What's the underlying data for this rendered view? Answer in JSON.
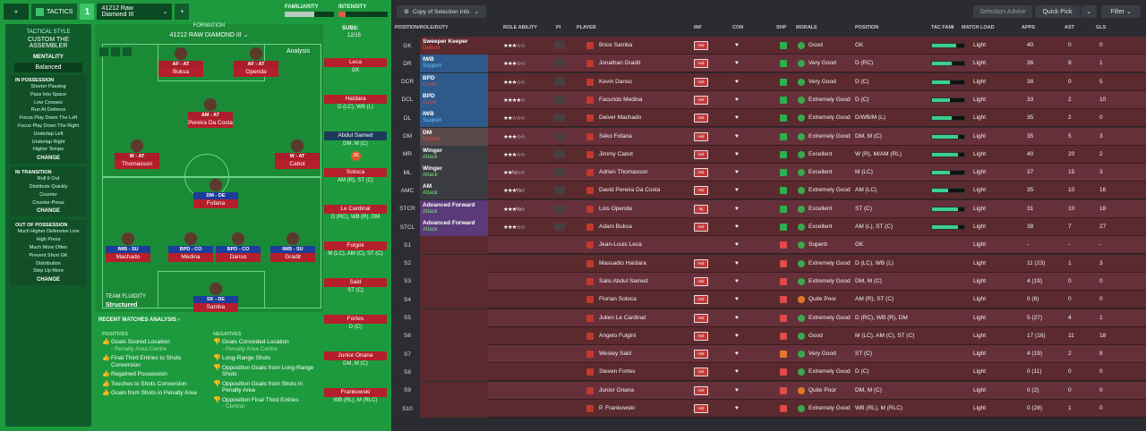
{
  "topbar": {
    "back_icon": "double-chevron-left-icon",
    "tactics_label": "TACTICS",
    "tactic_number": "1",
    "formation_select": "41212 Raw Diamond III",
    "add_label": "+",
    "familiarity_label": "FAMILIARITY",
    "intensity_label": "INTENSITY",
    "familiarity_fill": 0.6,
    "intensity_fill": 0.15
  },
  "tactic_panel": {
    "style_label": "TACTICAL STYLE",
    "style_value": "CUSTOM THE ASSEMBLER",
    "mentality_label": "MENTALITY",
    "mentality_value": "Balanced",
    "in_possession": {
      "title": "IN POSSESSION",
      "items": [
        "Shorter Passing",
        "Pass Into Space",
        "Low Crosses",
        "Run At Defence",
        "Focus Play Down The Left",
        "Focus Play Down The Right",
        "Underlap Left",
        "Underlap Right",
        "Higher Tempo"
      ],
      "change": "CHANGE"
    },
    "in_transition": {
      "title": "IN TRANSITION",
      "items": [
        "Roll It Out",
        "Distribute Quickly",
        "Counter",
        "Counter-Press"
      ],
      "change": "CHANGE"
    },
    "out_of_possession": {
      "title": "OUT OF POSSESSION",
      "items": [
        "Much Higher Defensive Line",
        "High Press",
        "Much More Often",
        "Prevent Short GK",
        "Distribution",
        "Step Up More"
      ],
      "change": "CHANGE"
    }
  },
  "formation": {
    "label": "FORMATION",
    "name": "41212 RAW DIAMOND III",
    "analysis_label": "Analysis",
    "team_fluidity_label": "TEAM FLUIDITY",
    "team_fluidity_value": "Structured",
    "players": [
      {
        "role": "AF - AT",
        "name": "Buksa",
        "attack": true
      },
      {
        "role": "AF - AT",
        "name": "Openda",
        "attack": true
      },
      {
        "role": "AM - AT",
        "name": "Pereira Da Costa",
        "attack": true
      },
      {
        "role": "W - AT",
        "name": "Thomasson",
        "attack": true
      },
      {
        "role": "W - AT",
        "name": "Cabot",
        "attack": true
      },
      {
        "role": "DM - DE",
        "name": "Fofana",
        "attack": false
      },
      {
        "role": "IWB - SU",
        "name": "Machado",
        "attack": false
      },
      {
        "role": "BPD - CO",
        "name": "Medina",
        "attack": false
      },
      {
        "role": "BPD - CO",
        "name": "Danso",
        "attack": false
      },
      {
        "role": "IWB - SU",
        "name": "Gradit",
        "attack": false
      },
      {
        "role": "SK - DE",
        "name": "Samba",
        "attack": false
      }
    ]
  },
  "subs": {
    "label": "SUBS:",
    "count": "12/15",
    "list": [
      {
        "name": "Leca",
        "pos": "GK",
        "dark": false
      },
      {
        "name": "Haïdara",
        "pos": "D (LC), WB (L)",
        "dark": false
      },
      {
        "name": "Abdul Samed",
        "pos": "DM, M (C)",
        "dark": true
      },
      {
        "name": "Sotoca",
        "pos": "AM (R), ST (C)",
        "dark": false
      },
      {
        "name": "Le Cardinal",
        "pos": "D (RC), WB (R), DM",
        "dark": false
      },
      {
        "name": "Fulgini",
        "pos": "M (LC), AM (C), ST (C)",
        "dark": false
      },
      {
        "name": "Said",
        "pos": "ST (C)",
        "dark": false
      },
      {
        "name": "Fortes",
        "pos": "D (C)",
        "dark": false
      },
      {
        "name": "Junior Onana",
        "pos": "DM, M (C)",
        "dark": false
      },
      {
        "name": "Frankowski",
        "pos": "WB (RL), M (RLC)",
        "dark": false
      }
    ],
    "badge": "26"
  },
  "analysis": {
    "title": "RECENT MATCHES ANALYSIS",
    "positives_label": "POSITIVES",
    "negatives_label": "NEGATIVES",
    "positives": [
      {
        "text": "Goals Scored Location",
        "sub": "- Penalty Area Centre"
      },
      {
        "text": "Final Third Entries to Shots Conversion",
        "sub": ""
      },
      {
        "text": "Regained Possession",
        "sub": ""
      },
      {
        "text": "Touches to Shots Conversion",
        "sub": ""
      },
      {
        "text": "Goals from Shots in Penalty Area",
        "sub": ""
      }
    ],
    "negatives": [
      {
        "text": "Goals Conceded Location",
        "sub": "- Penalty Area Centre"
      },
      {
        "text": "Long-Range Shots",
        "sub": ""
      },
      {
        "text": "Opposition Goals from Long-Range Shots",
        "sub": ""
      },
      {
        "text": "Opposition Goals from Shots in Penalty Area",
        "sub": ""
      },
      {
        "text": "Opposition Final Third Entries",
        "sub": "- Central"
      }
    ]
  },
  "right_top": {
    "copy_label": "Copy of Selection Info",
    "selection_advice": "Selection Advice",
    "quick_pick": "Quick Pick",
    "filter": "Filter"
  },
  "table": {
    "headers": {
      "pos": "POSITION/ROLE/DUTY",
      "ability": "ROLE ABILITY",
      "pi": "PI",
      "player": "PLAYER",
      "inf": "INF",
      "con": "CON",
      "shp": "SHP",
      "morale": "MORALE",
      "position": "POSITION",
      "tac": "TAC FAMI",
      "match": "MATCH LOAD",
      "apps": "APPS",
      "ast": "AST",
      "gls": "GLS"
    },
    "rows": [
      {
        "slot": "GK",
        "role": "Sweeper Keeper",
        "duty": "Defend",
        "duty_color": "#e04a4a",
        "duty_bg": "#5a2a2e",
        "stars": "★★★☆☆",
        "player": "Brice Samba",
        "inf": "Hol",
        "morale": "Good",
        "position": "GK",
        "tac": 0.75,
        "load": "Light",
        "apps": "40",
        "ast": "0",
        "gls": "0",
        "shp": "#2bb04e",
        "mo": "#3aa84e"
      },
      {
        "slot": "DR",
        "role": "IWB",
        "duty": "Support",
        "duty_color": "#6ec1ff",
        "duty_bg": "#2d5a8a",
        "stars": "★★★☆☆",
        "player": "Jonathan Gradit",
        "inf": "Hol",
        "morale": "Very Good",
        "position": "D (RC)",
        "tac": 0.6,
        "load": "Light",
        "apps": "36",
        "ast": "9",
        "gls": "1",
        "shp": "#2bb04e",
        "mo": "#3aa84e"
      },
      {
        "slot": "DCR",
        "role": "BPD",
        "duty": "Cover",
        "duty_color": "#e04a4a",
        "duty_bg": "#2d5a8a",
        "stars": "★★★☆☆",
        "player": "Kevin Danso",
        "inf": "Hol",
        "morale": "Very Good",
        "position": "D (C)",
        "tac": 0.55,
        "load": "Light",
        "apps": "38",
        "ast": "0",
        "gls": "5",
        "shp": "#2bb04e",
        "mo": "#3aa84e"
      },
      {
        "slot": "DCL",
        "role": "BPD",
        "duty": "Cover",
        "duty_color": "#e04a4a",
        "duty_bg": "#2d5a8a",
        "stars": "★★★★☆",
        "player": "Facundo Medina",
        "inf": "Hol",
        "morale": "Extremely Good",
        "position": "D (C)",
        "tac": 0.55,
        "load": "Light",
        "apps": "33",
        "ast": "2",
        "gls": "10",
        "shp": "#2bb04e",
        "mo": "#3aa84e"
      },
      {
        "slot": "DL",
        "role": "IWB",
        "duty": "Support",
        "duty_color": "#6ec1ff",
        "duty_bg": "#2d5a8a",
        "stars": "★★☆☆☆",
        "player": "Deiver Machado",
        "inf": "Hol",
        "morale": "Extremely Good",
        "position": "D/WB/M (L)",
        "tac": 0.6,
        "load": "Light",
        "apps": "35",
        "ast": "2",
        "gls": "0",
        "shp": "#2bb04e",
        "mo": "#3aa84e"
      },
      {
        "slot": "DM",
        "role": "DM",
        "duty": "Defend",
        "duty_color": "#e04a4a",
        "duty_bg": "#5a4a4a",
        "stars": "★★★☆☆",
        "player": "Séko Fofana",
        "inf": "Hol",
        "morale": "Extremely Good",
        "position": "DM, M (C)",
        "tac": 0.8,
        "load": "Light",
        "apps": "35",
        "ast": "5",
        "gls": "3",
        "shp": "#2bb04e",
        "mo": "#3aa84e"
      },
      {
        "slot": "MR",
        "role": "Winger",
        "duty": "Attack",
        "duty_color": "#7ae07a",
        "duty_bg": "#3a3c42",
        "stars": "★★★☆☆",
        "player": "Jimmy Cabot",
        "inf": "Hol",
        "morale": "Excellent",
        "position": "W (R), M/AM (RL)",
        "tac": 0.8,
        "load": "Light",
        "apps": "40",
        "ast": "20",
        "gls": "2",
        "shp": "#2bb04e",
        "mo": "#3aa84e"
      },
      {
        "slot": "ML",
        "role": "Winger",
        "duty": "Attack",
        "duty_color": "#7ae07a",
        "duty_bg": "#3a3c42",
        "stars": "★★½☆☆",
        "player": "Adrien Thomasson",
        "inf": "Hol",
        "morale": "Excellent",
        "position": "M (LC)",
        "tac": 0.55,
        "load": "Light",
        "apps": "37",
        "ast": "15",
        "gls": "3",
        "shp": "#2bb04e",
        "mo": "#3aa84e"
      },
      {
        "slot": "AMC",
        "role": "AM",
        "duty": "Attack",
        "duty_color": "#7ae07a",
        "duty_bg": "#3a3c42",
        "stars": "★★★½☆",
        "player": "David Pereira Da Costa",
        "inf": "Hol",
        "morale": "Extremely Good",
        "position": "AM (LC)",
        "tac": 0.5,
        "load": "Light",
        "apps": "35",
        "ast": "10",
        "gls": "16",
        "shp": "#2bb04e",
        "mo": "#3aa84e"
      },
      {
        "slot": "STCR",
        "role": "Advanced Forward",
        "duty": "Attack",
        "duty_color": "#7ae07a",
        "duty_bg": "#5a3a78",
        "stars": "★★★½☆",
        "player": "Lois Openda",
        "inf": "Inj",
        "morale": "Excellent",
        "position": "ST (C)",
        "tac": 0.8,
        "load": "Light",
        "apps": "31",
        "ast": "10",
        "gls": "18",
        "shp": "#2bb04e",
        "mo": "#3aa84e"
      },
      {
        "slot": "STCL",
        "role": "Advanced Forward",
        "duty": "Attack",
        "duty_color": "#7ae07a",
        "duty_bg": "#5a3a78",
        "stars": "★★★☆☆",
        "player": "Adam Buksa",
        "inf": "Hol",
        "morale": "Excellent",
        "position": "AM (L), ST (C)",
        "tac": 0.8,
        "load": "Light",
        "apps": "38",
        "ast": "7",
        "gls": "27",
        "shp": "#2bb04e",
        "mo": "#3aa84e"
      },
      {
        "slot": "S1",
        "role": "",
        "duty": "",
        "duty_color": "#fff",
        "duty_bg": "#5a2a2e",
        "stars": "",
        "player": "Jean-Louis Leca",
        "inf": "",
        "morale": "Superb",
        "position": "GK",
        "tac": 0,
        "load": "Light",
        "apps": "-",
        "ast": "-",
        "gls": "-",
        "shp": "#e04a4a",
        "mo": "#3aa84e"
      },
      {
        "slot": "S2",
        "role": "",
        "duty": "",
        "duty_color": "#fff",
        "duty_bg": "#5a2a2e",
        "stars": "",
        "player": "Massadio Haïdara",
        "inf": "Hol",
        "morale": "Extremely Good",
        "position": "D (LC), WB (L)",
        "tac": 0,
        "load": "Light",
        "apps": "11 (23)",
        "ast": "1",
        "gls": "3",
        "shp": "#e04a4a",
        "mo": "#3aa84e"
      },
      {
        "slot": "S3",
        "role": "",
        "duty": "",
        "duty_color": "#fff",
        "duty_bg": "#5a2a2e",
        "stars": "",
        "player": "Salis Abdul Samed",
        "inf": "Hol",
        "morale": "Extremely Good",
        "position": "DM, M (C)",
        "tac": 0,
        "load": "Light",
        "apps": "4 (19)",
        "ast": "0",
        "gls": "0",
        "shp": "#e04a4a",
        "mo": "#3aa84e"
      },
      {
        "slot": "S4",
        "role": "",
        "duty": "",
        "duty_color": "#fff",
        "duty_bg": "#5a2a2e",
        "stars": "",
        "player": "Florian Sotoca",
        "inf": "Hol",
        "morale": "Quite Poor",
        "position": "AM (R), ST (C)",
        "tac": 0,
        "load": "Light",
        "apps": "0 (6)",
        "ast": "0",
        "gls": "0",
        "shp": "#e04a4a",
        "mo": "#e0782a"
      },
      {
        "slot": "S5",
        "role": "",
        "duty": "",
        "duty_color": "#fff",
        "duty_bg": "#5a2a2e",
        "stars": "",
        "player": "Julien Le Cardinal",
        "inf": "Hol",
        "morale": "Extremely Good",
        "position": "D (RC), WB (R), DM",
        "tac": 0,
        "load": "Light",
        "apps": "5 (27)",
        "ast": "4",
        "gls": "1",
        "shp": "#e04a4a",
        "mo": "#3aa84e"
      },
      {
        "slot": "S6",
        "role": "",
        "duty": "",
        "duty_color": "#fff",
        "duty_bg": "#5a2a2e",
        "stars": "",
        "player": "Angelo Fulgini",
        "inf": "Hol",
        "morale": "Good",
        "position": "M (LC), AM (C), ST (C)",
        "tac": 0,
        "load": "Light",
        "apps": "17 (16)",
        "ast": "11",
        "gls": "18",
        "shp": "#e04a4a",
        "mo": "#3aa84e"
      },
      {
        "slot": "S7",
        "role": "",
        "duty": "",
        "duty_color": "#fff",
        "duty_bg": "#5a2a2e",
        "stars": "",
        "player": "Wesley Said",
        "inf": "Hol",
        "morale": "Very Good",
        "position": "ST (C)",
        "tac": 0,
        "load": "Light",
        "apps": "4 (19)",
        "ast": "2",
        "gls": "8",
        "shp": "#e0782a",
        "mo": "#3aa84e"
      },
      {
        "slot": "S8",
        "role": "",
        "duty": "",
        "duty_color": "#fff",
        "duty_bg": "#5a2a2e",
        "stars": "",
        "player": "Steven Fortes",
        "inf": "Hol",
        "morale": "Extremely Good",
        "position": "D (C)",
        "tac": 0,
        "load": "Light",
        "apps": "0 (11)",
        "ast": "0",
        "gls": "0",
        "shp": "#e04a4a",
        "mo": "#3aa84e"
      },
      {
        "slot": "S9",
        "role": "",
        "duty": "",
        "duty_color": "#fff",
        "duty_bg": "#5a2a2e",
        "stars": "",
        "player": "Junior Onana",
        "inf": "Hol",
        "morale": "Quite Poor",
        "position": "DM, M (C)",
        "tac": 0,
        "load": "Light",
        "apps": "0 (2)",
        "ast": "0",
        "gls": "0",
        "shp": "#e04a4a",
        "mo": "#e0782a"
      },
      {
        "slot": "S10",
        "role": "",
        "duty": "",
        "duty_color": "#fff",
        "duty_bg": "#5a2a2e",
        "stars": "",
        "player": "P. Frankowski",
        "inf": "Hol",
        "morale": "Extremely Good",
        "position": "WB (RL), M (RLC)",
        "tac": 0,
        "load": "Light",
        "apps": "0 (28)",
        "ast": "1",
        "gls": "0",
        "shp": "#e04a4a",
        "mo": "#3aa84e"
      }
    ]
  }
}
